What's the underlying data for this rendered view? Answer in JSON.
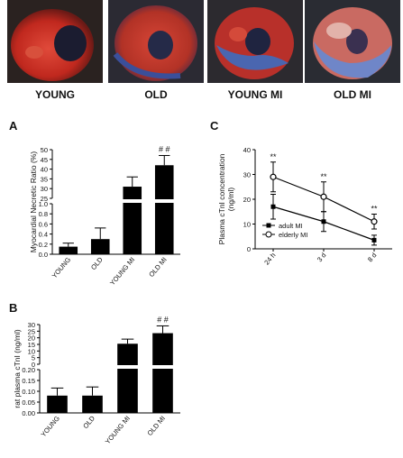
{
  "photos": {
    "labels": [
      "YOUNG",
      "OLD",
      "YOUNG MI",
      "OLD MI"
    ]
  },
  "chart_data": [
    {
      "panel": "A",
      "type": "bar",
      "ylabel": "Myocardial Necretic Ratio (%)",
      "categories": [
        "YOUNG",
        "OLD",
        "YOUNG MI",
        "OLD MI"
      ],
      "values": [
        0.15,
        0.3,
        31,
        42
      ],
      "errors": [
        0.07,
        0.22,
        5,
        5
      ],
      "axis_broken": true,
      "lower_range": [
        0,
        1.0
      ],
      "lower_ticks": [
        "0.0",
        "0.2",
        "0.4",
        "0.6",
        "0.8",
        "1.0"
      ],
      "upper_range": [
        25,
        50
      ],
      "upper_ticks": [
        "25",
        "30",
        "35",
        "40",
        "45",
        "50"
      ],
      "annotations": [
        {
          "category": "OLD MI",
          "text": "# #"
        }
      ]
    },
    {
      "panel": "B",
      "type": "bar",
      "ylabel": "rat plasma cTnI (ng/ml)",
      "categories": [
        "YOUNG",
        "OLD",
        "YOUNG MI",
        "OLD MI"
      ],
      "values": [
        0.08,
        0.08,
        15.5,
        23.5
      ],
      "errors": [
        0.035,
        0.04,
        3.5,
        5.5
      ],
      "axis_broken": true,
      "lower_range": [
        0,
        0.2
      ],
      "lower_ticks": [
        "0.00",
        "0.05",
        "0.10",
        "0.15",
        "0.20"
      ],
      "upper_range": [
        0,
        30
      ],
      "upper_ticks": [
        "0",
        "5",
        "10",
        "15",
        "20",
        "25",
        "30"
      ],
      "annotations": [
        {
          "category": "OLD MI",
          "text": "# #"
        }
      ]
    },
    {
      "panel": "C",
      "type": "line",
      "ylabel": "Plasma cTnI concentration\n(ng/ml)",
      "categories": [
        "24 h",
        "3 d",
        "8 d"
      ],
      "ylim": [
        0,
        40
      ],
      "yticks": [
        "0",
        "10",
        "20",
        "30",
        "40"
      ],
      "legend_position": "bottom-left",
      "series": [
        {
          "name": "adult MI",
          "marker": "square",
          "values": [
            17,
            11,
            3.5
          ],
          "errors": [
            5,
            4,
            2
          ]
        },
        {
          "name": "elderly MI",
          "marker": "circle",
          "values": [
            29,
            21,
            11
          ],
          "errors": [
            6,
            6,
            3
          ]
        }
      ],
      "annotations": [
        {
          "category": "24 h",
          "text": "**"
        },
        {
          "category": "3 d",
          "text": "**"
        },
        {
          "category": "8 d",
          "text": "**"
        }
      ]
    }
  ]
}
